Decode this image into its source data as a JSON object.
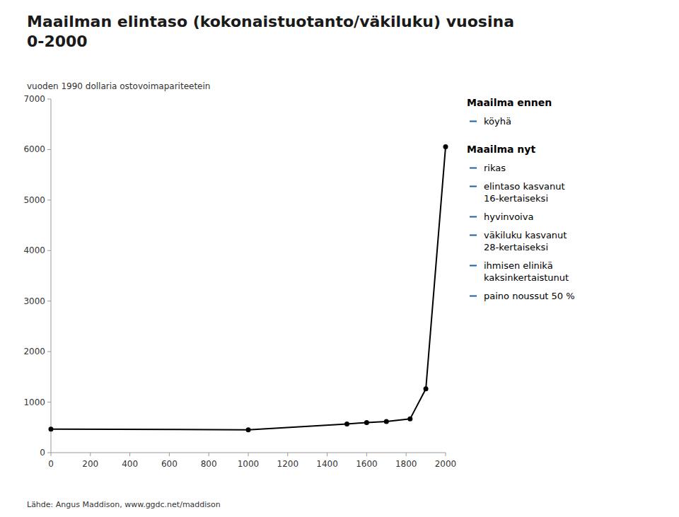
{
  "chart_data": {
    "type": "line",
    "title": "Maailman elintaso (kokonaistuotanto/väkiluku) vuosina\n0-2000",
    "ylabel": "vuoden 1990 dollaria ostovoimapariteetein",
    "x": [
      0,
      1000,
      1500,
      1600,
      1700,
      1820,
      1900,
      2000
    ],
    "values": [
      467,
      453,
      566,
      596,
      615,
      667,
      1263,
      6055
    ],
    "color": "#000000",
    "marker": "circle",
    "xlim": [
      0,
      2000
    ],
    "ylim": [
      0,
      7000
    ],
    "xticks": [
      0,
      200,
      400,
      600,
      800,
      1000,
      1200,
      1400,
      1600,
      1800,
      2000
    ],
    "yticks": [
      0,
      1000,
      2000,
      3000,
      4000,
      5000,
      6000,
      7000
    ],
    "grid": false,
    "annotations": [
      {
        "text": "Maailma ennen",
        "items": [
          "köyhä"
        ],
        "color": "#1F5FA6"
      },
      {
        "text": "Maailma nyt",
        "items": [
          "rikas",
          "elintaso kasvanut\n16-kertaiseksi",
          "hyvinvoiva",
          "väkiluku kasvanut\n28-kertaiseksi",
          "ihmisen elinikä\nkaksinkertaistunut",
          "paino noussut 50 %"
        ],
        "color": "#1F5FA6"
      },
      {
        "text": "Lähde: Angus Maddison, www.ggdc.net/maddison"
      }
    ]
  }
}
